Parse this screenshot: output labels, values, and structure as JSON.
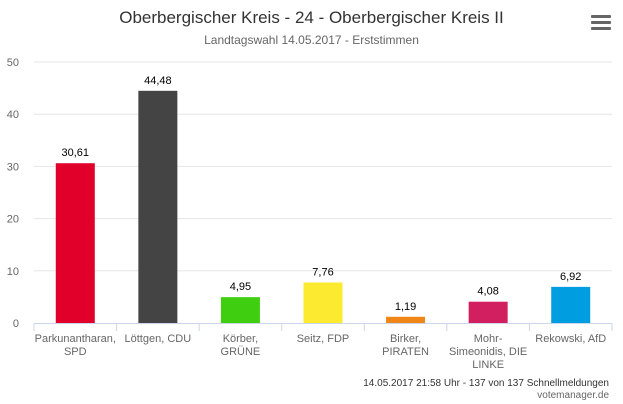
{
  "header": {
    "title": "Oberbergischer Kreis - 24 - Oberbergischer Kreis II",
    "subtitle": "Landtagswahl 14.05.2017 - Erststimmen",
    "menu_icon": "hamburger-menu-icon"
  },
  "footer": {
    "status": "14.05.2017 21:58 Uhr - 137 von 137 Schnellmeldungen",
    "source": "votemanager.de"
  },
  "chart_data": {
    "type": "bar",
    "categories": [
      [
        "Parkunantharan,",
        "SPD"
      ],
      [
        "Löttgen, CDU"
      ],
      [
        "Körber,",
        "GRÜNE"
      ],
      [
        "Seitz, FDP"
      ],
      [
        "Birker,",
        "PIRATEN"
      ],
      [
        "Mohr-",
        "Simeonidis, DIE",
        "LINKE"
      ],
      [
        "Rekowski, AfD"
      ]
    ],
    "values": [
      30.61,
      44.48,
      4.95,
      7.76,
      1.19,
      4.08,
      6.92
    ],
    "value_labels": [
      "30,61",
      "44,48",
      "4,95",
      "7,76",
      "1,19",
      "4,08",
      "6,92"
    ],
    "colors": [
      "#e0002a",
      "#444444",
      "#3fce10",
      "#fcea31",
      "#f08617",
      "#d11f5f",
      "#009ee0"
    ],
    "ylim": [
      0,
      50
    ],
    "yticks": [
      0,
      10,
      20,
      30,
      40,
      50
    ],
    "grid": true,
    "legend": false
  }
}
